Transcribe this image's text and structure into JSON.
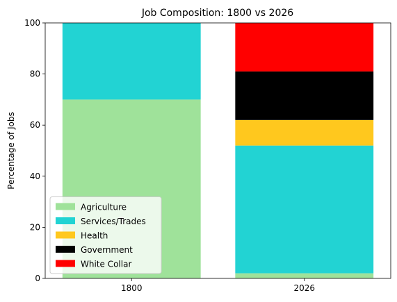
{
  "chart_data": {
    "type": "bar",
    "stacked": true,
    "title": "Job Composition: 1800 vs 2026",
    "xlabel": "",
    "ylabel": "Percentage of Jobs",
    "ylim": [
      0,
      100
    ],
    "yticks": [
      0,
      20,
      40,
      60,
      80,
      100
    ],
    "categories": [
      "1800",
      "2026"
    ],
    "series": [
      {
        "name": "Agriculture",
        "color": "#9fe29a",
        "values": [
          70,
          2
        ]
      },
      {
        "name": "Services/Trades",
        "color": "#22d3d3",
        "values": [
          30,
          50
        ]
      },
      {
        "name": "Health",
        "color": "#ffc81e",
        "values": [
          0,
          10
        ]
      },
      {
        "name": "Government",
        "color": "#000000",
        "values": [
          0,
          19
        ]
      },
      {
        "name": "White Collar",
        "color": "#ff0000",
        "values": [
          0,
          19
        ]
      }
    ],
    "legend": {
      "position": "lower-left"
    },
    "grid": false
  }
}
